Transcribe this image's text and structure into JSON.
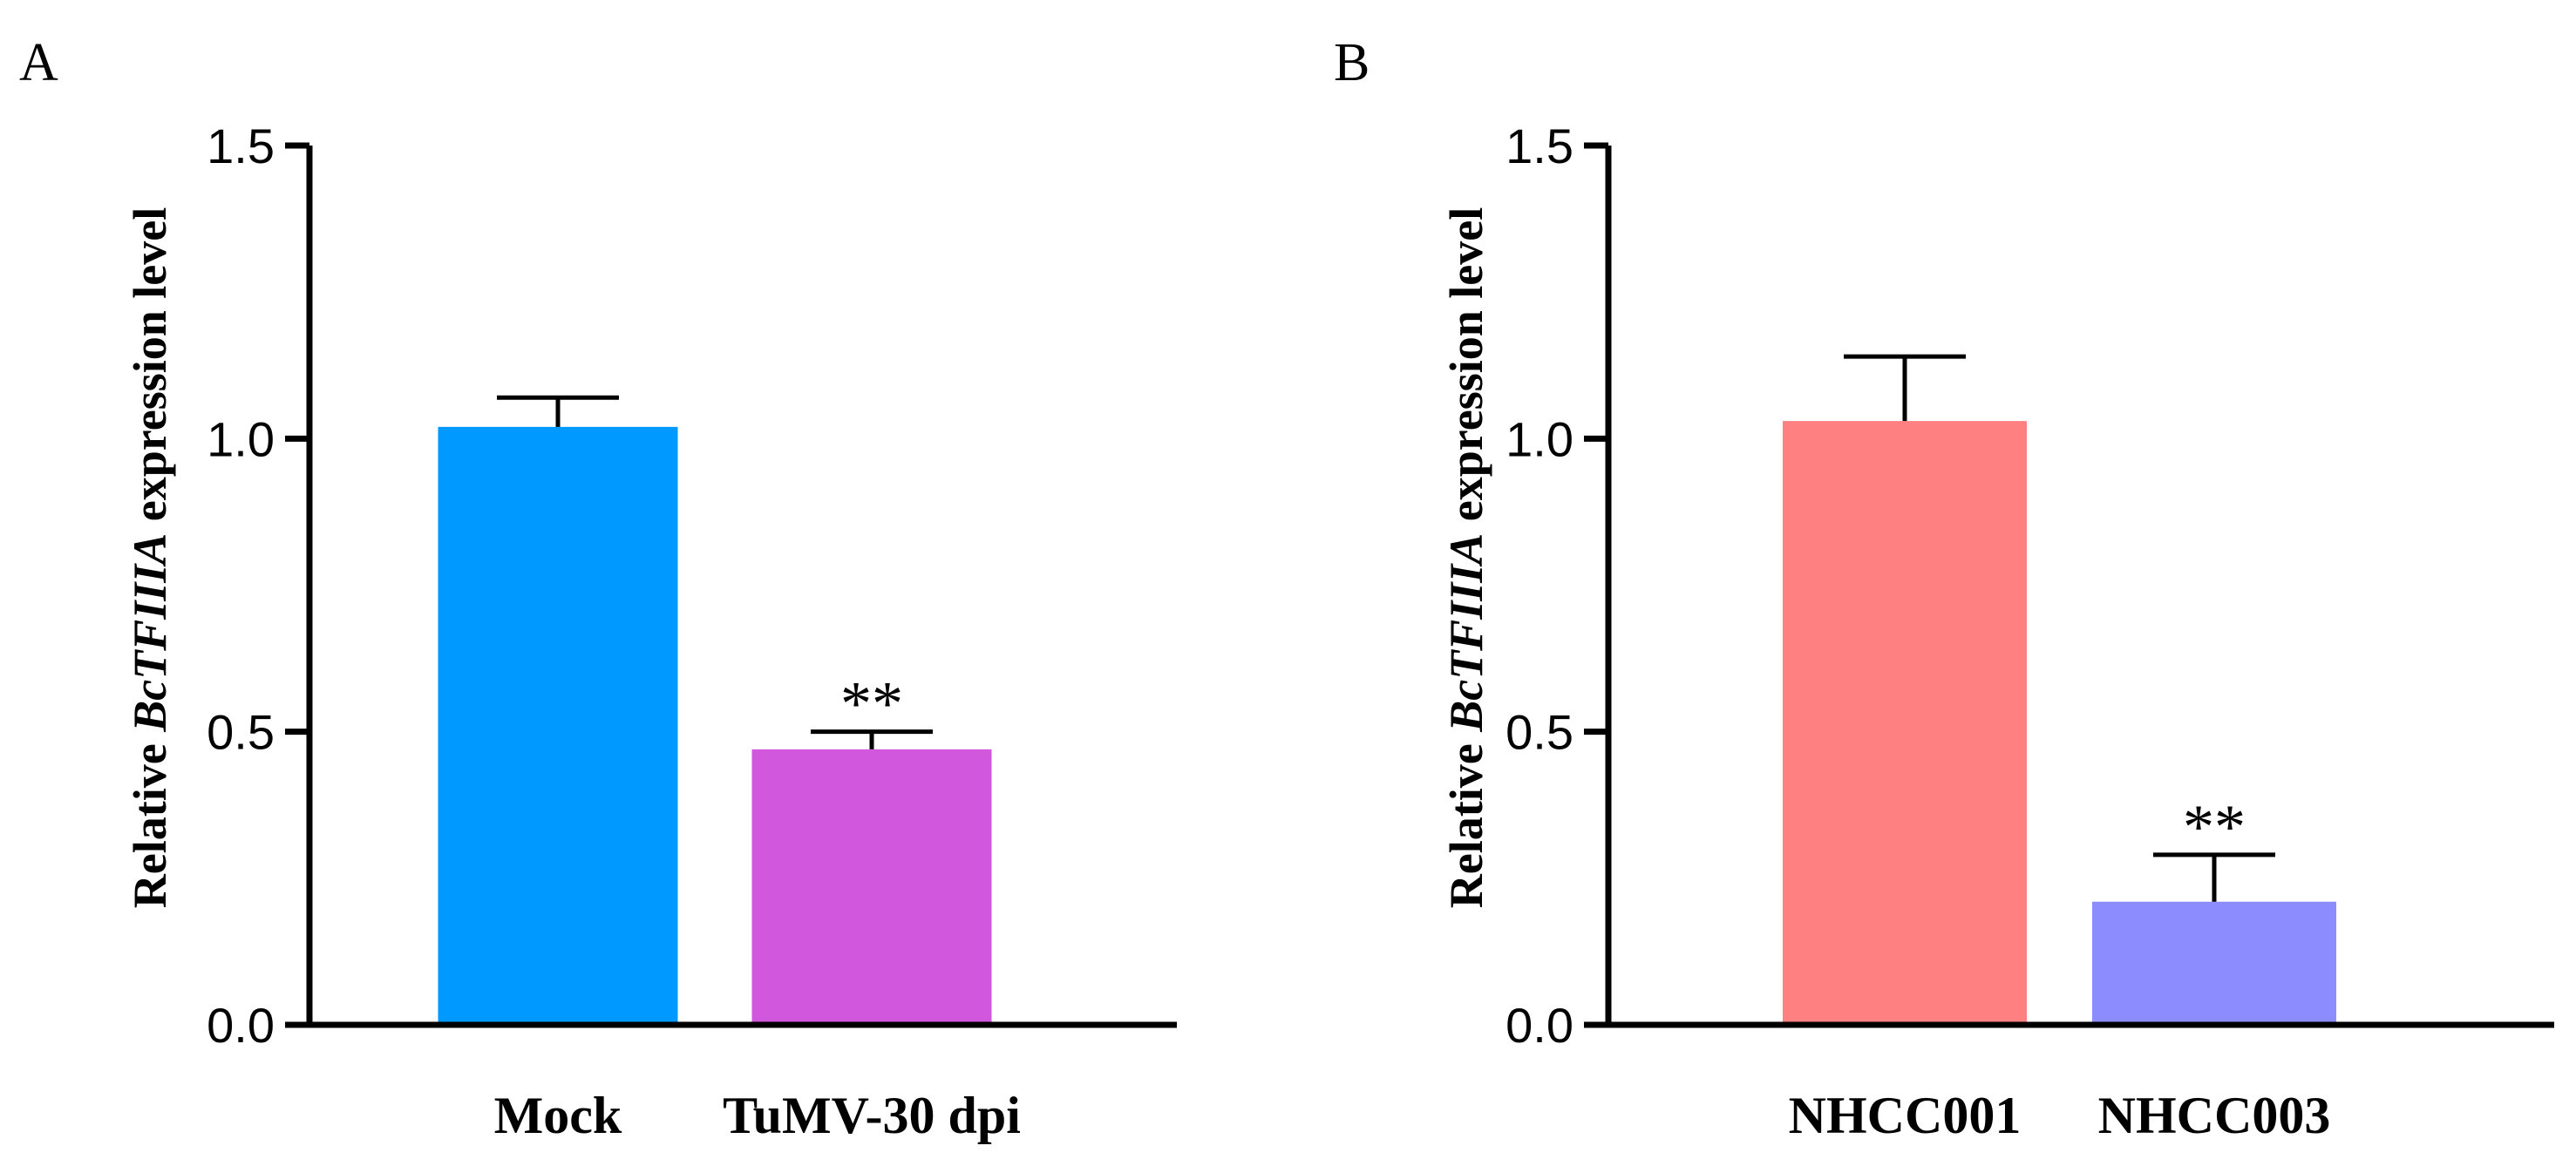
{
  "chart_data": [
    {
      "panel_label": "A",
      "type": "bar",
      "title": "",
      "ylabel": {
        "pre": "Relative ",
        "italic": "BcTFIIIA",
        "post": " expression level"
      },
      "ylim": [
        0,
        1.5
      ],
      "yticks": [
        0.0,
        0.5,
        1.0,
        1.5
      ],
      "ytick_labels": [
        "0.0",
        "0.5",
        "1.0",
        "1.5"
      ],
      "categories": [
        "Mock",
        "TuMV-30 dpi"
      ],
      "values": [
        1.02,
        0.47
      ],
      "errors": [
        0.05,
        0.03
      ],
      "colors": [
        "#0099ff",
        "#d157dd"
      ],
      "significance": [
        "",
        "**"
      ]
    },
    {
      "panel_label": "B",
      "type": "bar",
      "title": "",
      "ylabel": {
        "pre": "Relative ",
        "italic": "BcTFIIIA",
        "post": " expression level"
      },
      "ylim": [
        0,
        1.5
      ],
      "yticks": [
        0.0,
        0.5,
        1.0,
        1.5
      ],
      "ytick_labels": [
        "0.0",
        "0.5",
        "1.0",
        "1.5"
      ],
      "categories": [
        "NHCC001",
        "NHCC003"
      ],
      "values": [
        1.03,
        0.21
      ],
      "errors": [
        0.11,
        0.08
      ],
      "colors": [
        "#ff8080",
        "#8c8cff"
      ],
      "significance": [
        "",
        "**"
      ]
    }
  ]
}
